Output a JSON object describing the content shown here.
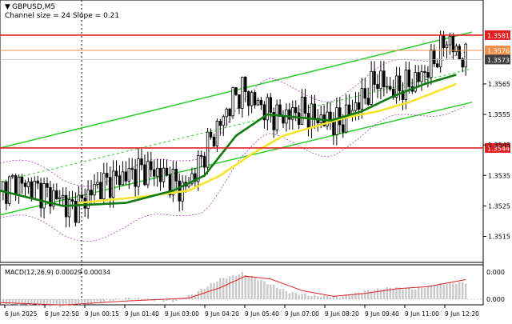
{
  "header": {
    "symbol_label": "GBPUSD,M5",
    "channel_info": "Channel size = 24 Slope = 0.21"
  },
  "macd": {
    "label": "MACD(12,26,9) 0.00029 0.00034",
    "scale_top": "0.000",
    "scale_bottom": "0.000"
  },
  "price_labels": {
    "ticks": [
      "1.3565",
      "1.3555",
      "1.3545",
      "1.3535",
      "1.3525",
      "1.3515"
    ],
    "lines": [
      {
        "text": "1.3581",
        "color": "#e02020"
      },
      {
        "text": "1.3576",
        "color": "#f0904a"
      },
      {
        "text": "1.3573",
        "color": "#404040"
      },
      {
        "text": "1.3544",
        "color": "#e02020"
      }
    ]
  },
  "time_labels": [
    "6 Jun 2025",
    "6 Jun 22:50",
    "9 Jun 00:15",
    "9 Jun 01:40",
    "9 Jun 03:00",
    "9 Jun 04:20",
    "9 Jun 05:40",
    "9 Jun 07:00",
    "9 Jun 08:20",
    "9 Jun 09:40",
    "9 Jun 11:00",
    "9 Jun 12:20"
  ],
  "colors": {
    "candle": "#000000",
    "ma_green": "#0f7a0f",
    "ma_yellow": "#f5e42a",
    "channel": "#27d027",
    "envelope": "#b040c0",
    "macd_hist": "#c8c8c8",
    "macd_signal": "#e02020",
    "resistance": "#e02020",
    "level_orange": "#f0904a"
  },
  "chart_data": {
    "type": "candlestick",
    "symbol": "GBPUSD",
    "timeframe": "M5",
    "y_range": [
      1.3507,
      1.3592
    ],
    "x_range_bars": [
      0,
      150
    ],
    "levels": [
      {
        "price": 1.3581,
        "style": "solid",
        "color": "red"
      },
      {
        "price": 1.3576,
        "style": "solid",
        "color": "orange"
      },
      {
        "price": 1.3544,
        "style": "solid",
        "color": "red"
      },
      {
        "price": 1.3573,
        "style": "current-price"
      }
    ],
    "channel": {
      "upper": [
        [
          0,
          1.3544
        ],
        [
          150,
          1.3582
        ]
      ],
      "lower": [
        [
          0,
          1.3522
        ],
        [
          150,
          1.3559
        ]
      ],
      "middle_dashed": [
        [
          0,
          1.3533
        ],
        [
          150,
          1.357
        ]
      ]
    },
    "ma_green": [
      [
        0,
        1.353
      ],
      [
        20,
        1.3525
      ],
      [
        40,
        1.3526
      ],
      [
        55,
        1.353
      ],
      [
        65,
        1.3535
      ],
      [
        75,
        1.3548
      ],
      [
        85,
        1.3555
      ],
      [
        95,
        1.3554
      ],
      [
        105,
        1.3553
      ],
      [
        115,
        1.3556
      ],
      [
        125,
        1.3561
      ],
      [
        135,
        1.3565
      ],
      [
        145,
        1.3568
      ]
    ],
    "ma_yellow": [
      [
        25,
        1.3526
      ],
      [
        45,
        1.3528
      ],
      [
        60,
        1.353
      ],
      [
        70,
        1.3535
      ],
      [
        80,
        1.3542
      ],
      [
        90,
        1.3548
      ],
      [
        100,
        1.3551
      ],
      [
        110,
        1.3554
      ],
      [
        120,
        1.3556
      ],
      [
        130,
        1.3559
      ],
      [
        145,
        1.3565
      ]
    ],
    "candles_close_path": [
      [
        0,
        1.353
      ],
      [
        5,
        1.3533
      ],
      [
        10,
        1.3531
      ],
      [
        15,
        1.3529
      ],
      [
        20,
        1.3527
      ],
      [
        22,
        1.3524
      ],
      [
        26,
        1.3526
      ],
      [
        30,
        1.3531
      ],
      [
        35,
        1.3533
      ],
      [
        40,
        1.3535
      ],
      [
        45,
        1.3537
      ],
      [
        50,
        1.3536
      ],
      [
        55,
        1.3533
      ],
      [
        58,
        1.353
      ],
      [
        62,
        1.3536
      ],
      [
        66,
        1.3545
      ],
      [
        70,
        1.3552
      ],
      [
        74,
        1.356
      ],
      [
        77,
        1.3563
      ],
      [
        80,
        1.356
      ],
      [
        84,
        1.3557
      ],
      [
        88,
        1.3554
      ],
      [
        92,
        1.3555
      ],
      [
        96,
        1.3556
      ],
      [
        100,
        1.3554
      ],
      [
        104,
        1.3553
      ],
      [
        108,
        1.3552
      ],
      [
        112,
        1.3557
      ],
      [
        116,
        1.3561
      ],
      [
        120,
        1.3567
      ],
      [
        124,
        1.3563
      ],
      [
        128,
        1.3564
      ],
      [
        132,
        1.3566
      ],
      [
        136,
        1.357
      ],
      [
        140,
        1.3576
      ],
      [
        142,
        1.358
      ],
      [
        144,
        1.3577
      ],
      [
        146,
        1.3574
      ],
      [
        148,
        1.3573
      ]
    ],
    "macd": {
      "histogram": [
        [
          0,
          -8e-05
        ],
        [
          20,
          -0.00012
        ],
        [
          30,
          -6e-05
        ],
        [
          40,
          2e-05
        ],
        [
          55,
          -4e-05
        ],
        [
          62,
          0.0001
        ],
        [
          70,
          0.00035
        ],
        [
          77,
          0.00045
        ],
        [
          84,
          0.0003
        ],
        [
          92,
          0.00012
        ],
        [
          100,
          6e-05
        ],
        [
          108,
          4e-05
        ],
        [
          116,
          0.00014
        ],
        [
          124,
          0.0002
        ],
        [
          132,
          0.00018
        ],
        [
          140,
          0.00026
        ],
        [
          148,
          0.00029
        ]
      ],
      "signal": [
        [
          0,
          -6e-05
        ],
        [
          20,
          -0.0001
        ],
        [
          40,
          -3e-05
        ],
        [
          60,
          2e-05
        ],
        [
          70,
          0.0002
        ],
        [
          78,
          0.0004
        ],
        [
          86,
          0.00035
        ],
        [
          96,
          0.00015
        ],
        [
          106,
          5e-05
        ],
        [
          116,
          0.0001
        ],
        [
          126,
          0.00018
        ],
        [
          136,
          0.00022
        ],
        [
          148,
          0.00034
        ]
      ]
    }
  }
}
